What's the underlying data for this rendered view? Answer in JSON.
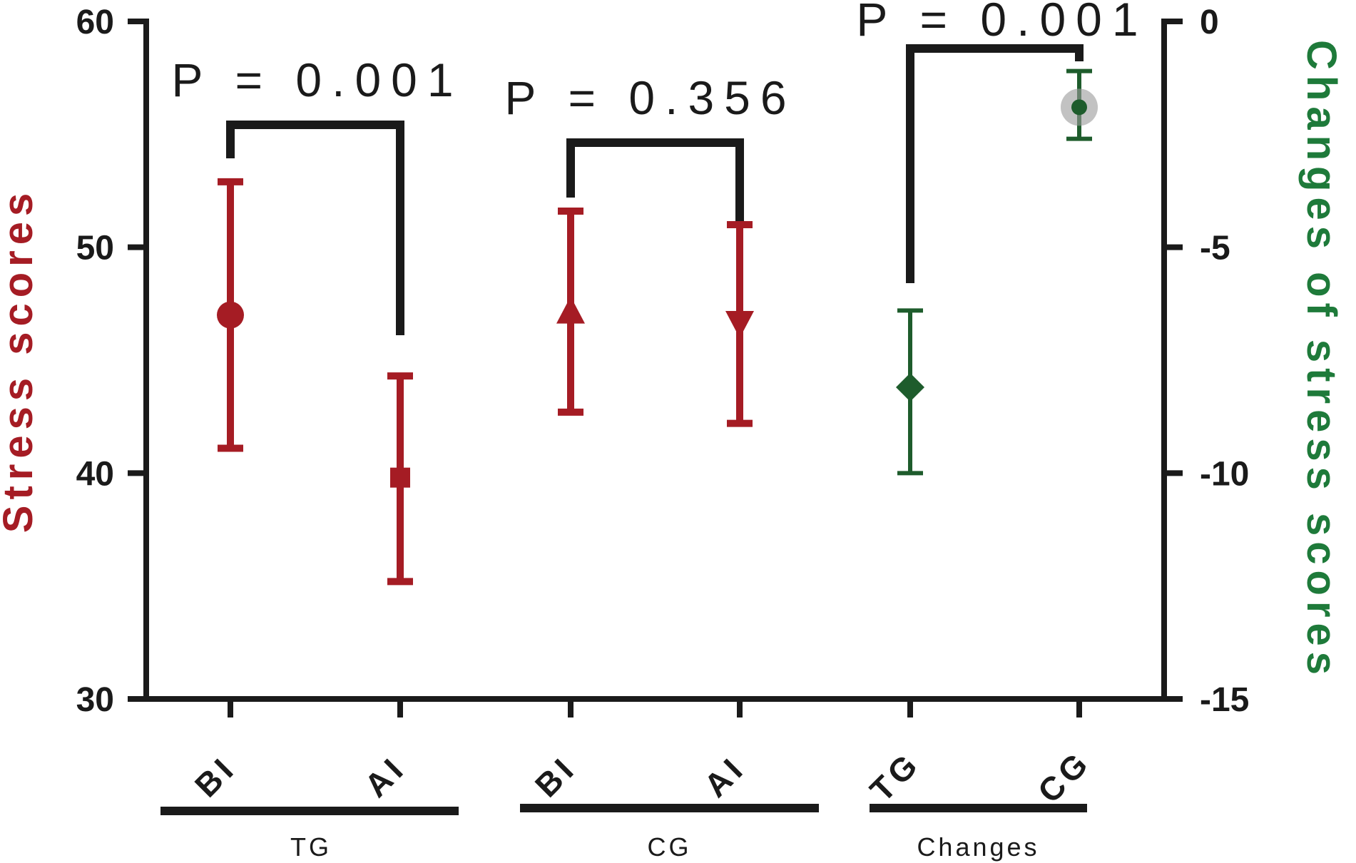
{
  "chart_data": {
    "type": "scatter",
    "left_axis": {
      "label": "Stress scores",
      "color": "#a51c24",
      "ylim": [
        30,
        60
      ],
      "ticks": [
        "30",
        "40",
        "50",
        "60"
      ]
    },
    "right_axis": {
      "label": "Changes of stress scores",
      "color": "#1e7a3a",
      "ylim": [
        -15,
        0
      ],
      "ticks": [
        "-15",
        "-10",
        "-5",
        "0"
      ]
    },
    "categories": [
      "BI",
      "AI",
      "BI",
      "AI",
      "TG",
      "CG"
    ],
    "groups": [
      {
        "label": "TG",
        "categories": [
          0,
          1
        ]
      },
      {
        "label": "CG",
        "categories": [
          2,
          3
        ]
      },
      {
        "label": "Changes",
        "categories": [
          4,
          5
        ]
      }
    ],
    "points": [
      {
        "category": 0,
        "axis": "left",
        "mean": 47.0,
        "lower": 41.1,
        "upper": 52.9,
        "marker": "circle",
        "color": "#a51c24"
      },
      {
        "category": 1,
        "axis": "left",
        "mean": 39.8,
        "lower": 35.2,
        "upper": 44.3,
        "marker": "square",
        "color": "#a51c24"
      },
      {
        "category": 2,
        "axis": "left",
        "mean": 47.0,
        "lower": 42.7,
        "upper": 51.6,
        "marker": "triangle-up",
        "color": "#a51c24"
      },
      {
        "category": 3,
        "axis": "left",
        "mean": 46.8,
        "lower": 42.2,
        "upper": 51.0,
        "marker": "triangle-down",
        "color": "#a51c24"
      },
      {
        "category": 4,
        "axis": "right",
        "mean": -8.1,
        "lower": -10.0,
        "upper": -6.4,
        "marker": "diamond",
        "color": "#1e5c2c"
      },
      {
        "category": 5,
        "axis": "right",
        "mean": -1.9,
        "lower": -2.6,
        "upper": -1.1,
        "marker": "circle",
        "color": "#1e5c2c"
      }
    ],
    "comparisons": [
      {
        "label": "P = 0.001",
        "from": 0,
        "to": 1
      },
      {
        "label": "P = 0.356",
        "from": 2,
        "to": 3
      },
      {
        "label": "P = 0.001",
        "from": 4,
        "to": 5
      }
    ]
  }
}
